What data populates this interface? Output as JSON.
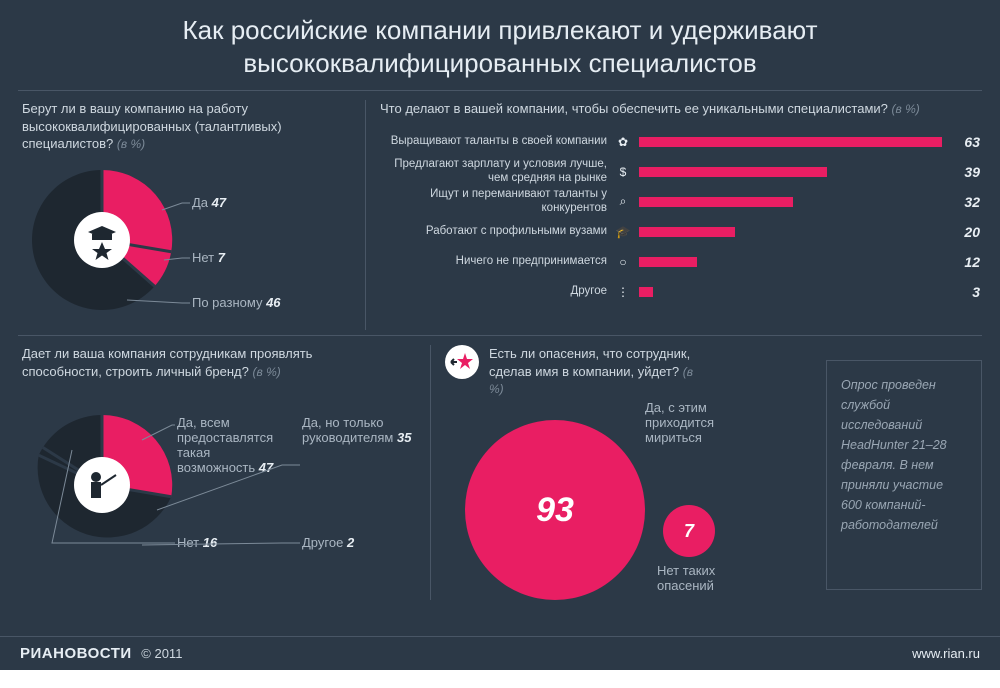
{
  "meta": {
    "bg_color": "#2c3947",
    "accent_color": "#e91e63",
    "dark_slice_color": "#1e2730",
    "text_muted": "#aab6c2",
    "divider_color": "#495666"
  },
  "title": "Как российские компании привлекают и удерживают высококвалифицированных специалистов",
  "q1": {
    "question": "Берут ли в вашу компанию на работу высококвалифицированных (талантливых) специалистов?",
    "unit": "(в %)",
    "type": "pie",
    "slices": [
      {
        "label": "Да",
        "value": 47,
        "color": "#e91e63"
      },
      {
        "label": "Нет",
        "value": 7,
        "color": "#e91e63"
      },
      {
        "label": "По разному",
        "value": 46,
        "color": "#1e2730"
      }
    ],
    "inner_circle_color": "#ffffff",
    "icon": "graduation-star"
  },
  "q2": {
    "question": "Что делают в вашей компании, чтобы обеспечить ее уникальными специалистами?",
    "unit": "(в %)",
    "type": "bar",
    "max": 63,
    "bar_color": "#e91e63",
    "value_fontsize": 14,
    "label_fontsize": 11.5,
    "items": [
      {
        "label": "Выращивают таланты в своей компании",
        "icon": "sprout",
        "value": 63
      },
      {
        "label": "Предлагают зарплату и условия лучше, чем средняя на рынке",
        "icon": "dollar",
        "value": 39
      },
      {
        "label": "Ищут и переманивают таланты у конкурентов",
        "icon": "magnifier",
        "value": 32
      },
      {
        "label": "Работают с профильными вузами",
        "icon": "graduation",
        "value": 20
      },
      {
        "label": "Ничего не предпринимается",
        "icon": "circle",
        "value": 12
      },
      {
        "label": "Другое",
        "icon": "dots",
        "value": 3
      }
    ]
  },
  "q3": {
    "question": "Дает ли ваша компания сотрудникам проявлять способности, строить личный бренд?",
    "unit": "(в %)",
    "type": "pie",
    "slices": [
      {
        "label": "Да, всем предоставлятся такая возможность",
        "value": 47,
        "color": "#e91e63"
      },
      {
        "label": "Да, но только руководителям",
        "value": 35,
        "color": "#1e2730"
      },
      {
        "label": "Другое",
        "value": 2,
        "color": "#1e2730"
      },
      {
        "label": "Нет",
        "value": 16,
        "color": "#1e2730"
      }
    ],
    "inner_circle_color": "#ffffff",
    "icon": "teacher"
  },
  "q4": {
    "question": "Есть ли опасения, что сотрудник, сделав имя в компании, уйдет?",
    "unit": "(в %)",
    "type": "bubble",
    "icon": "star-arrow",
    "items": [
      {
        "label": "Да, с этим приходится мириться",
        "value": 93,
        "diameter": 180,
        "color": "#e91e63"
      },
      {
        "label": "Нет таких опасений",
        "value": 7,
        "diameter": 52,
        "color": "#e91e63"
      }
    ],
    "value_fontsize_big": 34,
    "value_fontsize_small": 18
  },
  "survey_note": "Опрос проведен службой исследований HeadHunter 21–28 февраля. В нем приняли участие 600 компаний-работодателей",
  "footer": {
    "brand": "РИАНОВОСТИ",
    "copyright": "© 2011",
    "url": "www.rian.ru"
  }
}
